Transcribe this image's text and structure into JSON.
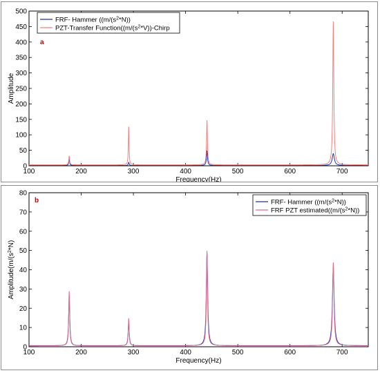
{
  "chart_data": [
    {
      "type": "line",
      "panel_label": "a",
      "xlabel": "Frequency(Hz)",
      "ylabel": "Amplitude",
      "xlim": [
        100,
        750
      ],
      "ylim": [
        0,
        500
      ],
      "x_ticks": [
        100,
        200,
        300,
        400,
        500,
        600,
        700
      ],
      "y_ticks": [
        0,
        50,
        100,
        150,
        200,
        250,
        300,
        350,
        400,
        450,
        500
      ],
      "legend_position": "top-left",
      "series": [
        {
          "name": "FRF- Hammer ((m/(s²*N))",
          "legend_parts": [
            "FRF- Hammer ((m/(s",
            "2",
            "*N))"
          ],
          "color": "#1f2fb0",
          "peaks": [
            {
              "f": 177,
              "a": 20,
              "w": 1.0
            },
            {
              "f": 291,
              "a": 10,
              "w": 1.0
            },
            {
              "f": 441,
              "a": 47,
              "w": 1.2
            },
            {
              "f": 683,
              "a": 38,
              "w": 2.5
            }
          ],
          "baseline": 1
        },
        {
          "name": "PZT-Transfer Function((m/(s²*V))-Chirp",
          "legend_parts": [
            "PZT-Transfer Function((m/(s",
            "2",
            "*V))-Chirp"
          ],
          "color": "#f08080",
          "peaks": [
            {
              "f": 177,
              "a": 28,
              "w": 1.0
            },
            {
              "f": 291,
              "a": 122,
              "w": 0.8
            },
            {
              "f": 441,
              "a": 143,
              "w": 1.0
            },
            {
              "f": 683,
              "a": 462,
              "w": 1.2
            }
          ],
          "baseline": 3
        }
      ]
    },
    {
      "type": "line",
      "panel_label": "b",
      "xlabel": "Frequency(Hz)",
      "ylabel_parts": [
        "Amplitude(m/(s",
        "2",
        "*N)"
      ],
      "xlim": [
        100,
        750
      ],
      "ylim": [
        0,
        80
      ],
      "x_ticks": [
        100,
        200,
        300,
        400,
        500,
        600,
        700
      ],
      "y_ticks": [
        0,
        10,
        20,
        30,
        40,
        50,
        60,
        70,
        80
      ],
      "legend_position": "top-right",
      "series": [
        {
          "name": "FRF- Hammer ((m/(s²*N))",
          "legend_parts": [
            "FRF- Hammer ((m/(s",
            "2",
            "*N))"
          ],
          "color": "#1f2fb0",
          "peaks": [
            {
              "f": 177,
              "a": 26,
              "w": 1.3
            },
            {
              "f": 291,
              "a": 13,
              "w": 1.2
            },
            {
              "f": 441,
              "a": 48,
              "w": 1.6
            },
            {
              "f": 683,
              "a": 41,
              "w": 2.0
            }
          ],
          "baseline": 0.5
        },
        {
          "name": "FRF PZT estimated((m/(s²*N))",
          "legend_parts": [
            "FRF PZT estimated((m/(s",
            "2",
            "*N))"
          ],
          "color": "#e06b8a",
          "peaks": [
            {
              "f": 177,
              "a": 28,
              "w": 1.1
            },
            {
              "f": 291,
              "a": 14,
              "w": 1.0
            },
            {
              "f": 441,
              "a": 49,
              "w": 1.3
            },
            {
              "f": 683,
              "a": 43,
              "w": 1.6
            }
          ],
          "baseline": 0.6
        }
      ]
    }
  ]
}
